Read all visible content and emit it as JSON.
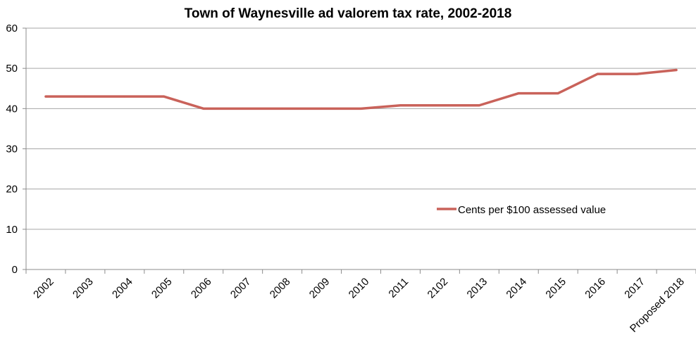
{
  "chart_data": {
    "type": "line",
    "title": "Town of Waynesville ad valorem tax rate, 2002-2018",
    "xlabel": "",
    "ylabel": "",
    "ylim": [
      0,
      60
    ],
    "yticks": [
      0,
      10,
      20,
      30,
      40,
      50,
      60
    ],
    "grid": true,
    "legend_position": "right",
    "categories": [
      "2002",
      "2003",
      "2004",
      "2005",
      "2006",
      "2007",
      "2008",
      "2009",
      "2010",
      "2011",
      "2102",
      "2013",
      "2014",
      "2015",
      "2016",
      "2017",
      "Proposed 2018"
    ],
    "series": [
      {
        "name": "Cents per $100 assessed value",
        "color": "#c9625a",
        "values": [
          43,
          43,
          43,
          43,
          40,
          40,
          40,
          40,
          40,
          40.8,
          40.8,
          40.8,
          43.8,
          43.8,
          48.6,
          48.6,
          49.6
        ]
      }
    ]
  }
}
